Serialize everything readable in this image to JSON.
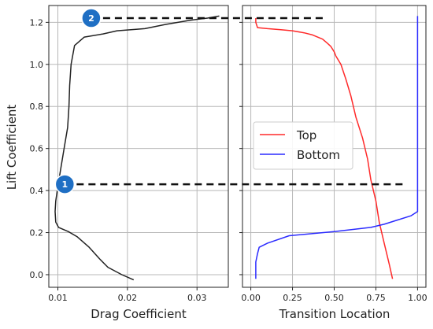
{
  "colors": {
    "polar": "#222222",
    "top": "#ff2a2a",
    "bottom": "#2b2bff",
    "grid": "#b8b8b8",
    "marker": "#111111",
    "badge": "#1f6fc4"
  },
  "chart_data": [
    {
      "type": "line",
      "panel": "left",
      "xlabel": "Drag Coefficient",
      "ylabel": "Lift Coefficient",
      "xlim": [
        0.0087,
        0.0345
      ],
      "ylim": [
        -0.06,
        1.28
      ],
      "xticks": [
        0.01,
        0.02,
        0.03
      ],
      "xtick_labels": [
        "0.01",
        "0.02",
        "0.03"
      ],
      "yticks": [
        0.0,
        0.2,
        0.4,
        0.6,
        0.8,
        1.0,
        1.2
      ],
      "ytick_labels": [
        "0.0",
        "0.2",
        "0.4",
        "0.6",
        "0.8",
        "1.0",
        "1.2"
      ],
      "grid": true,
      "series": [
        {
          "color_key": "polar",
          "x": [
            0.0209,
            0.0192,
            0.0172,
            0.016,
            0.0145,
            0.0128,
            0.0115,
            0.0101,
            0.0097,
            0.0096,
            0.0097,
            0.01,
            0.0104,
            0.0109,
            0.0114,
            0.0116,
            0.0117,
            0.0119,
            0.0124,
            0.0138,
            0.0165,
            0.0185,
            0.0205,
            0.0225,
            0.0255,
            0.029,
            0.0315,
            0.0332
          ],
          "y": [
            -0.025,
            0.0,
            0.035,
            0.075,
            0.13,
            0.18,
            0.205,
            0.225,
            0.25,
            0.3,
            0.35,
            0.42,
            0.5,
            0.6,
            0.7,
            0.8,
            0.9,
            1.0,
            1.09,
            1.13,
            1.145,
            1.16,
            1.165,
            1.17,
            1.19,
            1.21,
            1.22,
            1.23
          ]
        }
      ],
      "annotations": [
        {
          "label": "2",
          "x": 0.0148,
          "y": 1.22
        },
        {
          "label": "1",
          "x": 0.011,
          "y": 0.43
        }
      ]
    },
    {
      "type": "line",
      "panel": "right",
      "xlabel": "Transition Location",
      "xlim": [
        -0.05,
        1.05
      ],
      "ylim": [
        -0.06,
        1.28
      ],
      "xticks": [
        0.0,
        0.25,
        0.5,
        0.75,
        1.0
      ],
      "xtick_labels": [
        "0.00",
        "0.25",
        "0.50",
        "0.75",
        "1.00"
      ],
      "yticks": [
        0.0,
        0.2,
        0.4,
        0.6,
        0.8,
        1.0,
        1.2
      ],
      "grid": true,
      "legend": "center-left",
      "series": [
        {
          "name": "Top",
          "color_key": "top",
          "x": [
            0.85,
            0.83,
            0.8,
            0.77,
            0.75,
            0.72,
            0.7,
            0.67,
            0.63,
            0.6,
            0.57,
            0.54,
            0.51,
            0.5,
            0.48,
            0.46,
            0.43,
            0.37,
            0.32,
            0.25,
            0.18,
            0.1,
            0.04,
            0.03,
            0.03
          ],
          "y": [
            -0.02,
            0.05,
            0.15,
            0.25,
            0.35,
            0.45,
            0.55,
            0.65,
            0.75,
            0.85,
            0.93,
            1.0,
            1.04,
            1.06,
            1.085,
            1.1,
            1.12,
            1.14,
            1.15,
            1.16,
            1.165,
            1.17,
            1.175,
            1.2,
            1.22
          ]
        },
        {
          "name": "Bottom",
          "color_key": "bottom",
          "x": [
            0.03,
            0.03,
            0.04,
            0.05,
            0.1,
            0.23,
            0.5,
            0.72,
            0.8,
            0.88,
            0.96,
            1.0,
            1.0,
            1.0,
            1.0,
            1.0,
            1.0
          ],
          "y": [
            -0.02,
            0.06,
            0.1,
            0.13,
            0.15,
            0.185,
            0.205,
            0.225,
            0.24,
            0.26,
            0.28,
            0.3,
            0.5,
            0.7,
            0.9,
            1.1,
            1.23
          ]
        }
      ],
      "markers": [
        {
          "from_panel": "left",
          "from_x": 0.0148,
          "to_panel": "right",
          "to_x": 0.45,
          "y": 1.22
        },
        {
          "from_panel": "left",
          "from_x": 0.011,
          "to_panel": "right",
          "to_x": 0.93,
          "y": 0.43
        }
      ]
    }
  ]
}
